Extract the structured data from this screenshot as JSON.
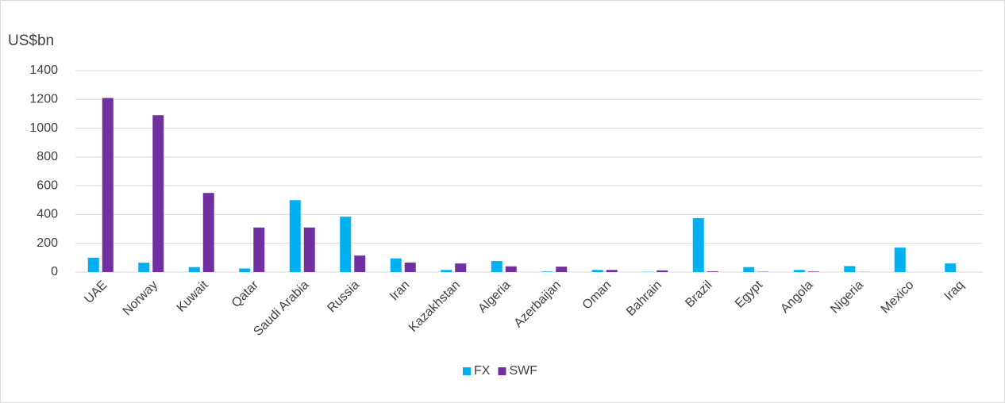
{
  "chart_data": {
    "type": "bar",
    "y_label": "US$bn",
    "categories": [
      "UAE",
      "Norway",
      "Kuwait",
      "Qatar",
      "Saudi Arabia",
      "Russia",
      "Iran",
      "Kazakhstan",
      "Algeria",
      "Azerbaijan",
      "Oman",
      "Bahrain",
      "Brazil",
      "Egypt",
      "Angola",
      "Nigeria",
      "Mexico",
      "Iraq"
    ],
    "series": [
      {
        "name": "FX",
        "color": "#00b0f0",
        "values": [
          100,
          65,
          35,
          25,
          500,
          385,
          95,
          15,
          77,
          4,
          15,
          2,
          375,
          35,
          15,
          42,
          170,
          60
        ]
      },
      {
        "name": "SWF",
        "color": "#7030a0",
        "values": [
          1210,
          1090,
          550,
          310,
          310,
          115,
          66,
          60,
          40,
          38,
          15,
          12,
          5,
          2,
          4,
          1,
          0,
          0
        ]
      }
    ],
    "ylim": [
      0,
      1400
    ],
    "yticks": [
      0,
      200,
      400,
      600,
      800,
      1000,
      1200,
      1400
    ],
    "grid": true,
    "legend": "bottom"
  }
}
